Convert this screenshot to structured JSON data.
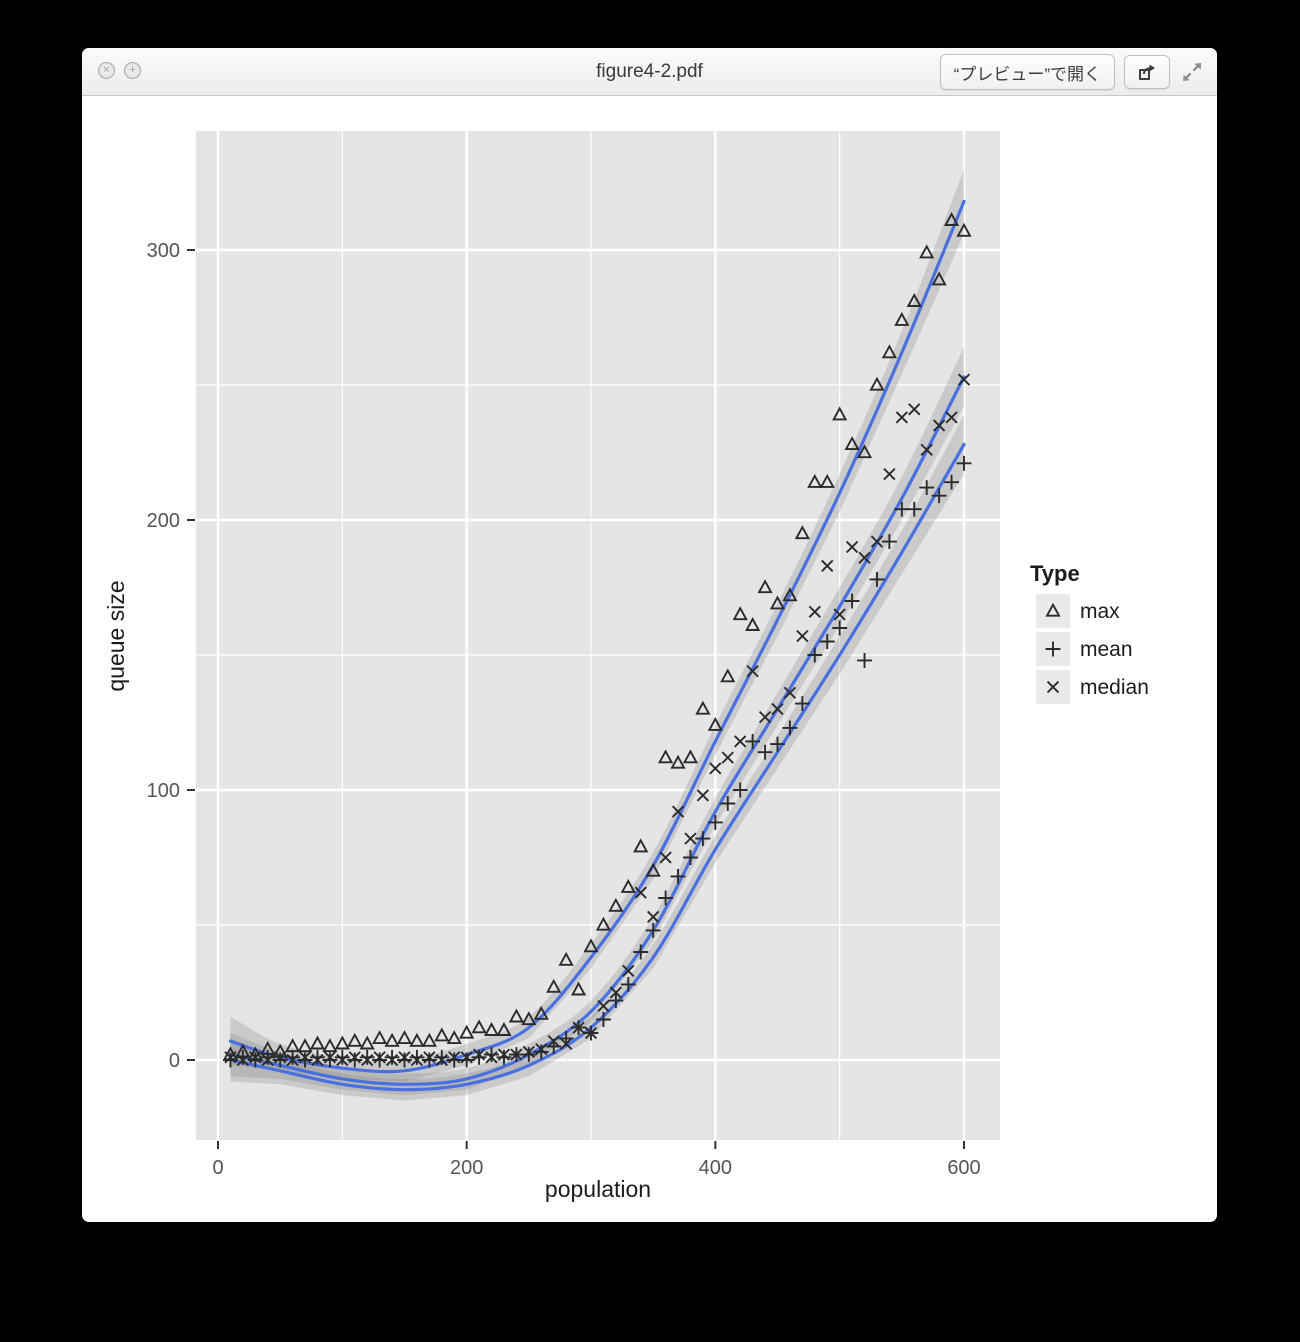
{
  "window": {
    "title": "figure4-2.pdf",
    "titlebar": {
      "close_glyph": "×",
      "zoom_glyph": "+",
      "open_with_preview_label": "“プレビュー”で開く"
    }
  },
  "chart_data": {
    "type": "scatter",
    "xlabel": "population",
    "ylabel": "queue size",
    "xlim": [
      -18,
      630
    ],
    "ylim": [
      -29,
      344
    ],
    "x_ticks": [
      0,
      200,
      400,
      600
    ],
    "y_ticks": [
      0,
      100,
      200,
      300
    ],
    "x_minor_ticks": [
      100,
      300,
      500
    ],
    "y_minor_ticks": [
      50,
      150,
      250
    ],
    "grid": "on",
    "legend": {
      "title": "Type",
      "position": "right"
    },
    "colors": {
      "panel_bg": "#e5e5e5",
      "grid": "#ffffff",
      "smooth_line": "#4a70e0",
      "band": "#8c8c8c",
      "band_opacity": 0.3,
      "point": "#2b2b2b",
      "tick_label": "#555555",
      "axis_title": "#1c1c1c",
      "legend_key_bg": "#eaeaea"
    },
    "series": [
      {
        "name": "max",
        "marker": "triangle-open",
        "points": [
          [
            10,
            2
          ],
          [
            20,
            3
          ],
          [
            30,
            2
          ],
          [
            40,
            4
          ],
          [
            50,
            3
          ],
          [
            60,
            5
          ],
          [
            70,
            5
          ],
          [
            80,
            6
          ],
          [
            90,
            5
          ],
          [
            100,
            6
          ],
          [
            110,
            7
          ],
          [
            120,
            6
          ],
          [
            130,
            8
          ],
          [
            140,
            7
          ],
          [
            150,
            8
          ],
          [
            160,
            7
          ],
          [
            170,
            7
          ],
          [
            180,
            9
          ],
          [
            190,
            8
          ],
          [
            200,
            10
          ],
          [
            210,
            12
          ],
          [
            220,
            11
          ],
          [
            230,
            11
          ],
          [
            240,
            16
          ],
          [
            250,
            15
          ],
          [
            260,
            17
          ],
          [
            270,
            27
          ],
          [
            280,
            37
          ],
          [
            290,
            26
          ],
          [
            300,
            42
          ],
          [
            310,
            50
          ],
          [
            320,
            57
          ],
          [
            330,
            64
          ],
          [
            340,
            79
          ],
          [
            350,
            70
          ],
          [
            360,
            112
          ],
          [
            370,
            110
          ],
          [
            380,
            112
          ],
          [
            390,
            130
          ],
          [
            400,
            124
          ],
          [
            410,
            142
          ],
          [
            420,
            165
          ],
          [
            430,
            161
          ],
          [
            440,
            175
          ],
          [
            450,
            169
          ],
          [
            460,
            172
          ],
          [
            470,
            195
          ],
          [
            480,
            214
          ],
          [
            490,
            214
          ],
          [
            500,
            239
          ],
          [
            510,
            228
          ],
          [
            520,
            225
          ],
          [
            530,
            250
          ],
          [
            540,
            262
          ],
          [
            550,
            274
          ],
          [
            560,
            281
          ],
          [
            570,
            299
          ],
          [
            580,
            289
          ],
          [
            590,
            311
          ],
          [
            600,
            307
          ]
        ],
        "smooth": [
          [
            10,
            7,
            -2,
            16
          ],
          [
            50,
            1,
            -4,
            6
          ],
          [
            100,
            -3,
            -7,
            1
          ],
          [
            150,
            -4,
            -8,
            0
          ],
          [
            200,
            2,
            -2,
            6
          ],
          [
            250,
            12,
            8,
            16
          ],
          [
            300,
            38,
            34,
            43
          ],
          [
            350,
            72,
            67,
            77
          ],
          [
            400,
            118,
            113,
            124
          ],
          [
            450,
            163,
            157,
            169
          ],
          [
            500,
            210,
            203,
            217
          ],
          [
            550,
            262,
            254,
            270
          ],
          [
            600,
            318,
            306,
            330
          ]
        ]
      },
      {
        "name": "mean",
        "marker": "plus",
        "points": [
          [
            10,
            0
          ],
          [
            20,
            1
          ],
          [
            30,
            0
          ],
          [
            40,
            1
          ],
          [
            50,
            0
          ],
          [
            60,
            1
          ],
          [
            70,
            0
          ],
          [
            80,
            1
          ],
          [
            90,
            0
          ],
          [
            100,
            1
          ],
          [
            110,
            0
          ],
          [
            120,
            1
          ],
          [
            130,
            0
          ],
          [
            140,
            1
          ],
          [
            150,
            0
          ],
          [
            160,
            1
          ],
          [
            170,
            0
          ],
          [
            180,
            1
          ],
          [
            190,
            0
          ],
          [
            200,
            0
          ],
          [
            210,
            1
          ],
          [
            220,
            2
          ],
          [
            230,
            1
          ],
          [
            240,
            2
          ],
          [
            250,
            2
          ],
          [
            260,
            3
          ],
          [
            270,
            5
          ],
          [
            280,
            8
          ],
          [
            290,
            12
          ],
          [
            300,
            10
          ],
          [
            310,
            15
          ],
          [
            320,
            22
          ],
          [
            330,
            28
          ],
          [
            340,
            40
          ],
          [
            350,
            48
          ],
          [
            360,
            60
          ],
          [
            370,
            68
          ],
          [
            380,
            75
          ],
          [
            390,
            82
          ],
          [
            400,
            88
          ],
          [
            410,
            95
          ],
          [
            420,
            100
          ],
          [
            430,
            118
          ],
          [
            440,
            114
          ],
          [
            450,
            117
          ],
          [
            460,
            123
          ],
          [
            470,
            132
          ],
          [
            480,
            150
          ],
          [
            490,
            155
          ],
          [
            500,
            160
          ],
          [
            510,
            170
          ],
          [
            520,
            148
          ],
          [
            530,
            178
          ],
          [
            540,
            192
          ],
          [
            550,
            204
          ],
          [
            560,
            204
          ],
          [
            570,
            212
          ],
          [
            580,
            209
          ],
          [
            590,
            214
          ],
          [
            600,
            221
          ]
        ],
        "smooth": [
          [
            10,
            0,
            -8,
            8
          ],
          [
            50,
            -4,
            -9,
            1
          ],
          [
            100,
            -9,
            -13,
            -5
          ],
          [
            150,
            -11,
            -15,
            -7
          ],
          [
            200,
            -9,
            -13,
            -5
          ],
          [
            250,
            -2,
            -6,
            2
          ],
          [
            300,
            12,
            8,
            16
          ],
          [
            350,
            38,
            34,
            43
          ],
          [
            400,
            78,
            73,
            83
          ],
          [
            450,
            114,
            108,
            120
          ],
          [
            500,
            150,
            143,
            157
          ],
          [
            550,
            188,
            180,
            196
          ],
          [
            600,
            228,
            217,
            239
          ]
        ]
      },
      {
        "name": "median",
        "marker": "cross",
        "points": [
          [
            10,
            1
          ],
          [
            20,
            0
          ],
          [
            30,
            1
          ],
          [
            40,
            0
          ],
          [
            50,
            1
          ],
          [
            60,
            0
          ],
          [
            70,
            1
          ],
          [
            80,
            0
          ],
          [
            90,
            1
          ],
          [
            100,
            0
          ],
          [
            110,
            1
          ],
          [
            120,
            0
          ],
          [
            130,
            1
          ],
          [
            140,
            0
          ],
          [
            150,
            1
          ],
          [
            160,
            0
          ],
          [
            170,
            1
          ],
          [
            180,
            0
          ],
          [
            190,
            1
          ],
          [
            200,
            1
          ],
          [
            210,
            2
          ],
          [
            220,
            1
          ],
          [
            230,
            2
          ],
          [
            240,
            2
          ],
          [
            250,
            3
          ],
          [
            260,
            4
          ],
          [
            270,
            7
          ],
          [
            280,
            6
          ],
          [
            290,
            12
          ],
          [
            300,
            10
          ],
          [
            310,
            20
          ],
          [
            320,
            25
          ],
          [
            330,
            33
          ],
          [
            340,
            62
          ],
          [
            350,
            53
          ],
          [
            360,
            75
          ],
          [
            370,
            92
          ],
          [
            380,
            82
          ],
          [
            390,
            98
          ],
          [
            400,
            108
          ],
          [
            410,
            112
          ],
          [
            420,
            118
          ],
          [
            430,
            144
          ],
          [
            440,
            127
          ],
          [
            450,
            130
          ],
          [
            460,
            136
          ],
          [
            470,
            157
          ],
          [
            480,
            166
          ],
          [
            490,
            183
          ],
          [
            500,
            165
          ],
          [
            510,
            190
          ],
          [
            520,
            186
          ],
          [
            530,
            192
          ],
          [
            540,
            217
          ],
          [
            550,
            238
          ],
          [
            560,
            241
          ],
          [
            570,
            226
          ],
          [
            580,
            235
          ],
          [
            590,
            238
          ],
          [
            600,
            252
          ]
        ],
        "smooth": [
          [
            10,
            2,
            -6,
            10
          ],
          [
            50,
            -2,
            -7,
            3
          ],
          [
            100,
            -7,
            -11,
            -3
          ],
          [
            150,
            -9,
            -13,
            -5
          ],
          [
            200,
            -7,
            -11,
            -3
          ],
          [
            250,
            2,
            -2,
            6
          ],
          [
            300,
            18,
            14,
            22
          ],
          [
            350,
            48,
            44,
            53
          ],
          [
            400,
            92,
            87,
            97
          ],
          [
            450,
            130,
            124,
            136
          ],
          [
            500,
            168,
            161,
            175
          ],
          [
            550,
            208,
            200,
            216
          ],
          [
            600,
            253,
            242,
            264
          ]
        ]
      }
    ]
  }
}
